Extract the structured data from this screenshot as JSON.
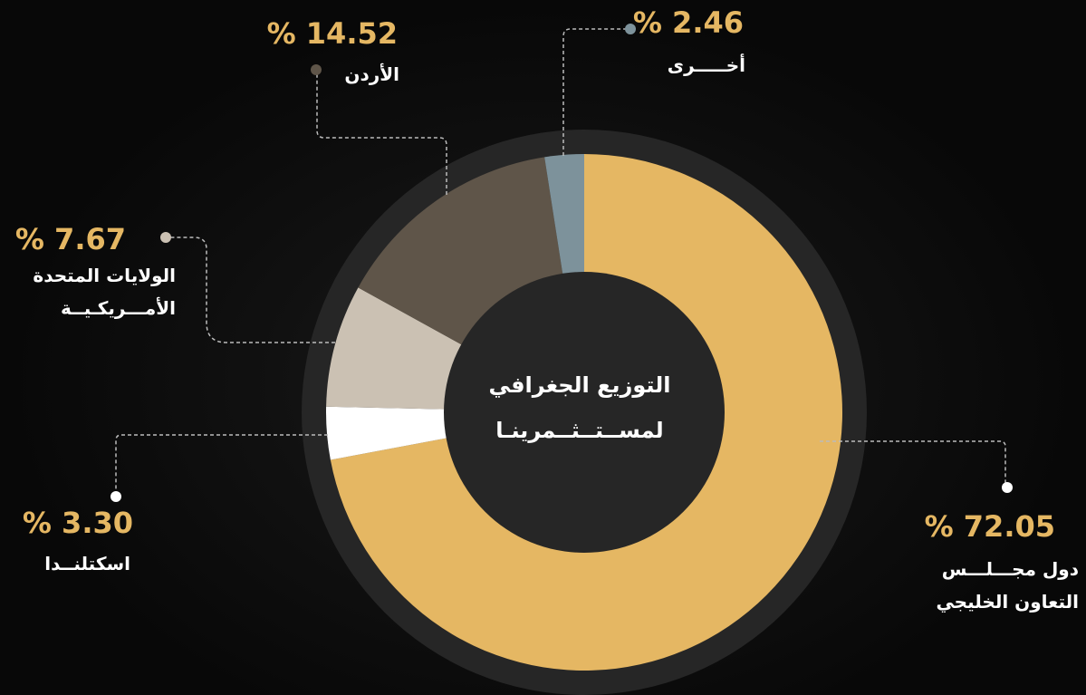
{
  "chart_data": {
    "type": "donut",
    "title": "التوزيع الجغرافي\nلمســتــثــمرينـا",
    "categories": [
      "دول مجـــلـــس\nالتعاون الخليجي",
      "اسكتلنــدا",
      "الولايات المتحدة\nالأمـــريكـيــة",
      "الأردن",
      "أخـــــرى"
    ],
    "values": [
      72.05,
      3.3,
      7.67,
      14.52,
      2.46
    ],
    "value_labels": [
      "% 72.05",
      "% 3.30",
      "% 7.67",
      "% 14.52",
      "% 2.46"
    ],
    "colors": [
      "#e5b763",
      "#ffffff",
      "#cbc1b3",
      "#5f5549",
      "#7d929b"
    ]
  }
}
